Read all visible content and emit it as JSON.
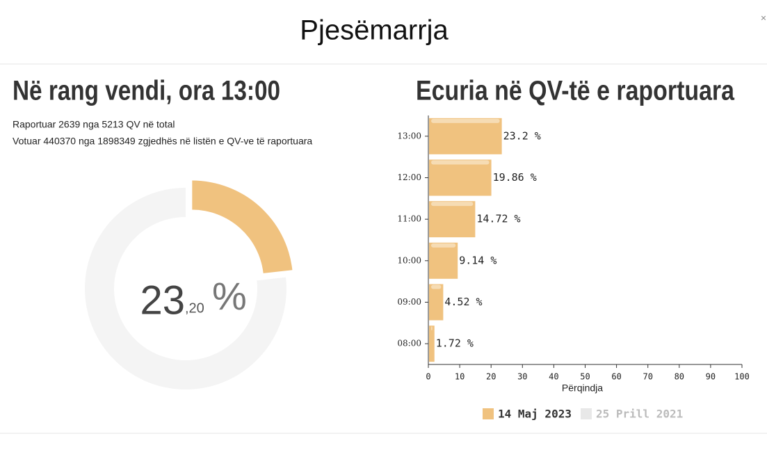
{
  "modal_title": "Pjesëmarrja",
  "close_label": "×",
  "left": {
    "title": "Në rang vendi, ora 13:00",
    "lines": [
      "Raportuar 2639 nga 5213 QV në total",
      "Votuar 440370 nga 1898349 zgjedhës në listën e QV-ve të raportuara"
    ],
    "donut": {
      "type": "donut",
      "value": 23.2,
      "value_integer_label": "23",
      "value_decimal_label": ",20",
      "unit_label": "%",
      "color": "#f0c27f",
      "rest_color": "#f4f4f4"
    }
  },
  "chart_data": {
    "type": "hbar",
    "title": "Ecuria në QV-të e raportuara",
    "categories": [
      "13:00",
      "12:00",
      "11:00",
      "10:00",
      "09:00",
      "08:00"
    ],
    "series": [
      {
        "name": "14 Maj 2023",
        "color": "#f0c27f",
        "values": [
          23.2,
          19.86,
          14.72,
          9.14,
          4.52,
          1.72
        ],
        "value_labels": [
          "23.2 %",
          "19.86 %",
          "14.72 %",
          "9.14 %",
          "4.52 %",
          "1.72 %"
        ]
      },
      {
        "name": "25 Prill 2021",
        "color": "#e8e8e8",
        "values": [
          null,
          null,
          null,
          null,
          null,
          null
        ]
      }
    ],
    "xlabel": "Përqindja",
    "xlim": [
      0,
      100
    ],
    "xticks": [
      0,
      10,
      20,
      30,
      40,
      50,
      60,
      70,
      80,
      90,
      100
    ]
  }
}
